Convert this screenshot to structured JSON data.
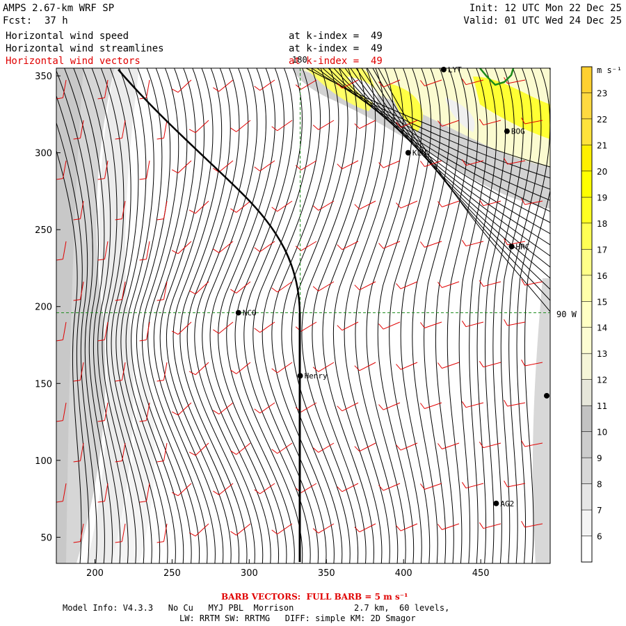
{
  "header": {
    "model": "AMPS 2.67-km WRF SP",
    "fcst_label": "Fcst:",
    "fcst_value": "37 h",
    "init": "Init: 12 UTC Mon 22 Dec 25",
    "valid": "Valid: 01 UTC Wed 24 Dec 25"
  },
  "fields": [
    {
      "name": "Horizontal wind speed",
      "level": "at k-index =  49",
      "color": "#000000"
    },
    {
      "name": "Horizontal wind streamlines",
      "level": "at k-index =  49",
      "color": "#000000"
    },
    {
      "name": "Horizontal wind vectors",
      "level": "at k-index =  49",
      "color": "#e00000"
    }
  ],
  "axes": {
    "x_ticks": [
      "200",
      "250",
      "300",
      "350",
      "400",
      "450"
    ],
    "y_ticks": [
      "350",
      "300",
      "250",
      "200",
      "150",
      "100",
      "50"
    ],
    "x_tick_values": [
      200,
      250,
      300,
      350,
      400,
      450
    ],
    "y_tick_values": [
      350,
      300,
      250,
      200,
      150,
      100,
      50
    ],
    "xlim": [
      175,
      495
    ],
    "ylim": [
      33,
      355
    ]
  },
  "graticule": {
    "meridian_label": "180",
    "parallel_label": "90 W",
    "meridian_x": 333,
    "parallel_y": 196,
    "color": "#1a8a1a"
  },
  "stations": [
    {
      "name": "NCO",
      "x": 293,
      "y": 196
    },
    {
      "name": "Henry",
      "x": 333,
      "y": 155
    },
    {
      "name": "KLN",
      "x": 403,
      "y": 300
    },
    {
      "name": "BOG",
      "x": 467,
      "y": 314
    },
    {
      "name": "LYT",
      "x": 426,
      "y": 355
    },
    {
      "name": "HRC",
      "x": 470,
      "y": 239
    },
    {
      "name": "AG2",
      "x": 460,
      "y": 72
    },
    {
      "name": "",
      "x": 493,
      "y": 142
    }
  ],
  "colorbar": {
    "unit": "m s⁻¹",
    "levels": [
      "6",
      "7",
      "8",
      "9",
      "10",
      "11",
      "12",
      "13",
      "14",
      "15",
      "16",
      "17",
      "18",
      "19",
      "20",
      "21",
      "22",
      "23"
    ],
    "colors": [
      "#ffffff",
      "#f4f4f4",
      "#e6e6e6",
      "#d8d8d8",
      "#cccccc",
      "#c2c2c2",
      "#e6e6da",
      "#f5f5d8",
      "#fcfcd2",
      "#ffffc4",
      "#ffffaa",
      "#ffff88",
      "#ffff55",
      "#ffff22",
      "#ffff00",
      "#fff000",
      "#ffe23c",
      "#ffd940",
      "#ffd030"
    ]
  },
  "footer": {
    "barb_note": "BARB VECTORS:  FULL BARB = 5 m s⁻¹",
    "model_info": "Model Info: V4.3.3   No Cu   MYJ PBL  Morrison            2.7 km,  60 levels,",
    "physics": "LW: RRTM SW: RRTMG   DIFF: simple KM: 2D Smagor"
  }
}
